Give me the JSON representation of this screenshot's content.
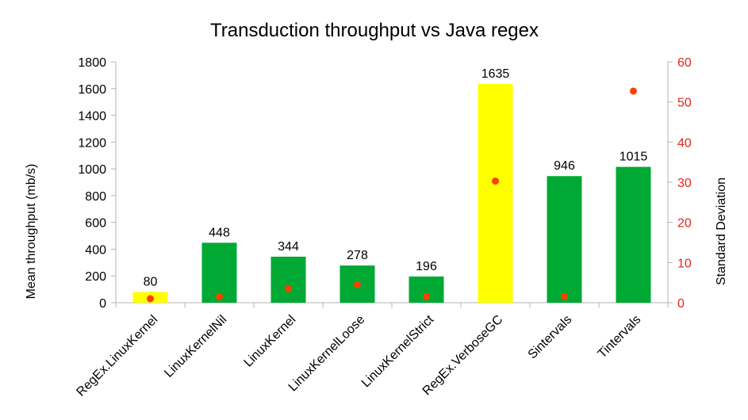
{
  "chart_data": {
    "type": "bar",
    "title": "Transduction throughput vs Java regex",
    "ylabel": "Mean throughput (mb/s)",
    "y2label": "Standard Deviation",
    "ylim": [
      0,
      1800
    ],
    "yticks": [
      0,
      200,
      400,
      600,
      800,
      1000,
      1200,
      1400,
      1600,
      1800
    ],
    "y2lim": [
      0,
      60
    ],
    "y2ticks": [
      0,
      10,
      20,
      30,
      40,
      50,
      60
    ],
    "categories": [
      "RegEx.LinuxKernel",
      "LinuxKernelNil",
      "LinuxKernel",
      "LinuxKernelLoose",
      "LinuxKernelStrict",
      "RegEx.VerboseGC",
      "Sintervals",
      "Tintervals"
    ],
    "values": [
      80,
      448,
      344,
      278,
      196,
      1635,
      946,
      1015
    ],
    "bar_colors": [
      "#ffff00",
      "#00a933",
      "#00a933",
      "#00a933",
      "#00a933",
      "#ffff00",
      "#00a933",
      "#00a933"
    ],
    "std_dev": [
      1.0,
      1.5,
      3.5,
      4.5,
      1.5,
      30.3,
      1.5,
      52.7
    ],
    "std_dev_color": "#ff4000",
    "right_axis_color": "#e8231a",
    "grid": false,
    "legend": "none"
  }
}
